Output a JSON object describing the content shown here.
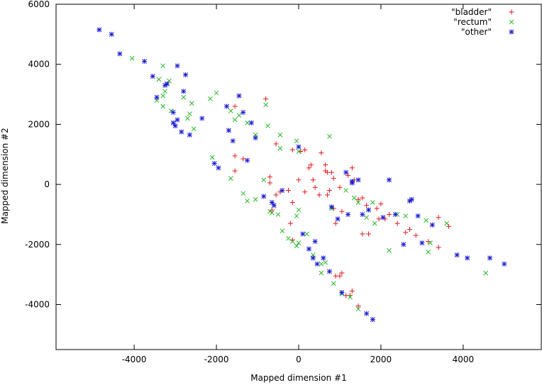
{
  "chart_data": {
    "type": "scatter",
    "title": "",
    "xlabel": "Mapped dimension #1",
    "ylabel": "Mapped dimension #2",
    "xlim": [
      -5900,
      5900
    ],
    "ylim": [
      -5500,
      6000
    ],
    "xticks": [
      -4000,
      -2000,
      0,
      2000,
      4000
    ],
    "yticks": [
      -4000,
      -2000,
      0,
      2000,
      4000,
      6000
    ],
    "xtick_labels": [
      "-4000",
      "-2000",
      "0",
      "2000",
      "4000"
    ],
    "ytick_labels": [
      "-4000",
      "-2000",
      "0",
      "2000",
      "4000",
      "6000"
    ],
    "grid": false,
    "legend_position": "top-right",
    "series": [
      {
        "name": "\"bladder\"",
        "marker": "plus",
        "color": "#e41a1c",
        "points": [
          [
            -800,
            2850
          ],
          [
            -1550,
            2600
          ],
          [
            -1550,
            950
          ],
          [
            -1550,
            450
          ],
          [
            -1350,
            850
          ],
          [
            -700,
            250
          ],
          [
            -700,
            50
          ],
          [
            -550,
            1350
          ],
          [
            -550,
            -350
          ],
          [
            -650,
            -850
          ],
          [
            -450,
            -250
          ],
          [
            -250,
            -200
          ],
          [
            -150,
            -600
          ],
          [
            -200,
            -1300
          ],
          [
            -150,
            -1850
          ],
          [
            0,
            150
          ],
          [
            -150,
            1150
          ],
          [
            50,
            1100
          ],
          [
            150,
            1150
          ],
          [
            150,
            -250
          ],
          [
            250,
            550
          ],
          [
            300,
            650
          ],
          [
            350,
            150
          ],
          [
            400,
            -100
          ],
          [
            500,
            -350
          ],
          [
            550,
            1050
          ],
          [
            650,
            650
          ],
          [
            700,
            400
          ],
          [
            750,
            -200
          ],
          [
            800,
            400
          ],
          [
            850,
            200
          ],
          [
            850,
            -800
          ],
          [
            900,
            -1300
          ],
          [
            1050,
            -900
          ],
          [
            1050,
            -2950
          ],
          [
            900,
            -3050
          ],
          [
            1000,
            -3050
          ],
          [
            1150,
            -3700
          ],
          [
            1250,
            -3700
          ],
          [
            1300,
            -3550
          ],
          [
            1450,
            -4050
          ],
          [
            1300,
            550
          ],
          [
            1350,
            150
          ],
          [
            1450,
            -500
          ],
          [
            1550,
            -1650
          ],
          [
            1700,
            -1650
          ],
          [
            1550,
            -450
          ],
          [
            1650,
            -700
          ],
          [
            1900,
            -800
          ],
          [
            2000,
            -650
          ],
          [
            1950,
            -1150
          ],
          [
            2100,
            -1150
          ],
          [
            2200,
            -1000
          ],
          [
            2400,
            -1300
          ],
          [
            2600,
            -1600
          ],
          [
            2700,
            -1500
          ],
          [
            2850,
            -1700
          ],
          [
            3150,
            -1900
          ],
          [
            3400,
            -2100
          ],
          [
            3400,
            -1100
          ],
          [
            3650,
            -1400
          ],
          [
            650,
            450
          ],
          [
            1200,
            300
          ],
          [
            1000,
            -100
          ],
          [
            700,
            -350
          ]
        ]
      },
      {
        "name": "\"rectum\"",
        "marker": "cross",
        "color": "#2cb82c",
        "points": [
          [
            -4050,
            4200
          ],
          [
            -3300,
            3950
          ],
          [
            -3250,
            3100
          ],
          [
            -3200,
            3350
          ],
          [
            -3150,
            3450
          ],
          [
            -3300,
            2950
          ],
          [
            -3400,
            3500
          ],
          [
            -3450,
            2800
          ],
          [
            -3300,
            2600
          ],
          [
            -3100,
            2450
          ],
          [
            -2800,
            2900
          ],
          [
            -2700,
            2200
          ],
          [
            -2600,
            2700
          ],
          [
            -2550,
            1850
          ],
          [
            -2650,
            2350
          ],
          [
            -2150,
            2850
          ],
          [
            -2000,
            3050
          ],
          [
            -1650,
            2450
          ],
          [
            -1550,
            2150
          ],
          [
            -1450,
            2300
          ],
          [
            -1250,
            2050
          ],
          [
            -1050,
            1650
          ],
          [
            -800,
            2650
          ],
          [
            -750,
            1950
          ],
          [
            -450,
            1650
          ],
          [
            -450,
            1200
          ],
          [
            -50,
            1450
          ],
          [
            0,
            1100
          ],
          [
            750,
            1600
          ],
          [
            -2100,
            900
          ],
          [
            -1650,
            200
          ],
          [
            -1350,
            -300
          ],
          [
            -1250,
            -550
          ],
          [
            -1050,
            -500
          ],
          [
            -850,
            150
          ],
          [
            -700,
            -900
          ],
          [
            -650,
            -950
          ],
          [
            -500,
            -1000
          ],
          [
            -400,
            -1550
          ],
          [
            -250,
            -1800
          ],
          [
            -150,
            -1900
          ],
          [
            -50,
            -2050
          ],
          [
            0,
            -1950
          ],
          [
            0,
            -850
          ],
          [
            -50,
            -1050
          ],
          [
            200,
            -1650
          ],
          [
            350,
            -2350
          ],
          [
            550,
            -2650
          ],
          [
            550,
            -2950
          ],
          [
            650,
            -2600
          ],
          [
            850,
            -3300
          ],
          [
            1050,
            -3650
          ],
          [
            1250,
            -3750
          ],
          [
            1450,
            -4150
          ],
          [
            800,
            -800
          ],
          [
            1150,
            -200
          ],
          [
            1350,
            -450
          ],
          [
            1450,
            -600
          ],
          [
            1700,
            -850
          ],
          [
            1800,
            -600
          ],
          [
            2200,
            -2200
          ],
          [
            2400,
            -1000
          ],
          [
            2600,
            -1050
          ],
          [
            3100,
            -1200
          ],
          [
            3200,
            -1950
          ],
          [
            3150,
            -2250
          ],
          [
            3600,
            -1300
          ],
          [
            4550,
            -2950
          ],
          [
            1650,
            -1100
          ],
          [
            1850,
            -1300
          ]
        ]
      },
      {
        "name": "\"other\"",
        "marker": "star",
        "color": "#1a1ad4",
        "points": [
          [
            -4850,
            5150
          ],
          [
            -4550,
            5000
          ],
          [
            -4350,
            4350
          ],
          [
            -3750,
            4100
          ],
          [
            -3550,
            3600
          ],
          [
            -3450,
            2900
          ],
          [
            -3250,
            3300
          ],
          [
            -3200,
            3350
          ],
          [
            -3050,
            2400
          ],
          [
            -3050,
            2050
          ],
          [
            -3000,
            1950
          ],
          [
            -2950,
            2150
          ],
          [
            -2950,
            3950
          ],
          [
            -2850,
            1750
          ],
          [
            -2800,
            3100
          ],
          [
            -2750,
            3650
          ],
          [
            -2650,
            1650
          ],
          [
            -2350,
            2200
          ],
          [
            -2050,
            700
          ],
          [
            -1950,
            550
          ],
          [
            -1750,
            2600
          ],
          [
            -1700,
            1800
          ],
          [
            -1600,
            1450
          ],
          [
            -1450,
            2950
          ],
          [
            -1350,
            2400
          ],
          [
            -1250,
            800
          ],
          [
            -1150,
            2050
          ],
          [
            -1050,
            1550
          ],
          [
            -850,
            -400
          ],
          [
            -650,
            -600
          ],
          [
            -600,
            -700
          ],
          [
            -400,
            -200
          ],
          [
            0,
            1250
          ],
          [
            100,
            -1650
          ],
          [
            250,
            -2150
          ],
          [
            350,
            -2450
          ],
          [
            400,
            -1900
          ],
          [
            450,
            -2650
          ],
          [
            600,
            -2450
          ],
          [
            750,
            -2900
          ],
          [
            800,
            -750
          ],
          [
            950,
            -1150
          ],
          [
            1050,
            -3600
          ],
          [
            1200,
            -1000
          ],
          [
            1150,
            400
          ],
          [
            1300,
            50
          ],
          [
            1300,
            100
          ],
          [
            1450,
            150
          ],
          [
            1650,
            -4300
          ],
          [
            1700,
            -850
          ],
          [
            1800,
            -4500
          ],
          [
            2050,
            -1100
          ],
          [
            2200,
            150
          ],
          [
            2350,
            -1000
          ],
          [
            2550,
            -2000
          ],
          [
            2700,
            -550
          ],
          [
            2750,
            -500
          ],
          [
            2900,
            -1050
          ],
          [
            3000,
            -1950
          ],
          [
            3250,
            -1350
          ],
          [
            3850,
            -2350
          ],
          [
            4100,
            -2450
          ],
          [
            4650,
            -2450
          ],
          [
            5000,
            -2650
          ],
          [
            1550,
            -1000
          ]
        ]
      }
    ]
  }
}
